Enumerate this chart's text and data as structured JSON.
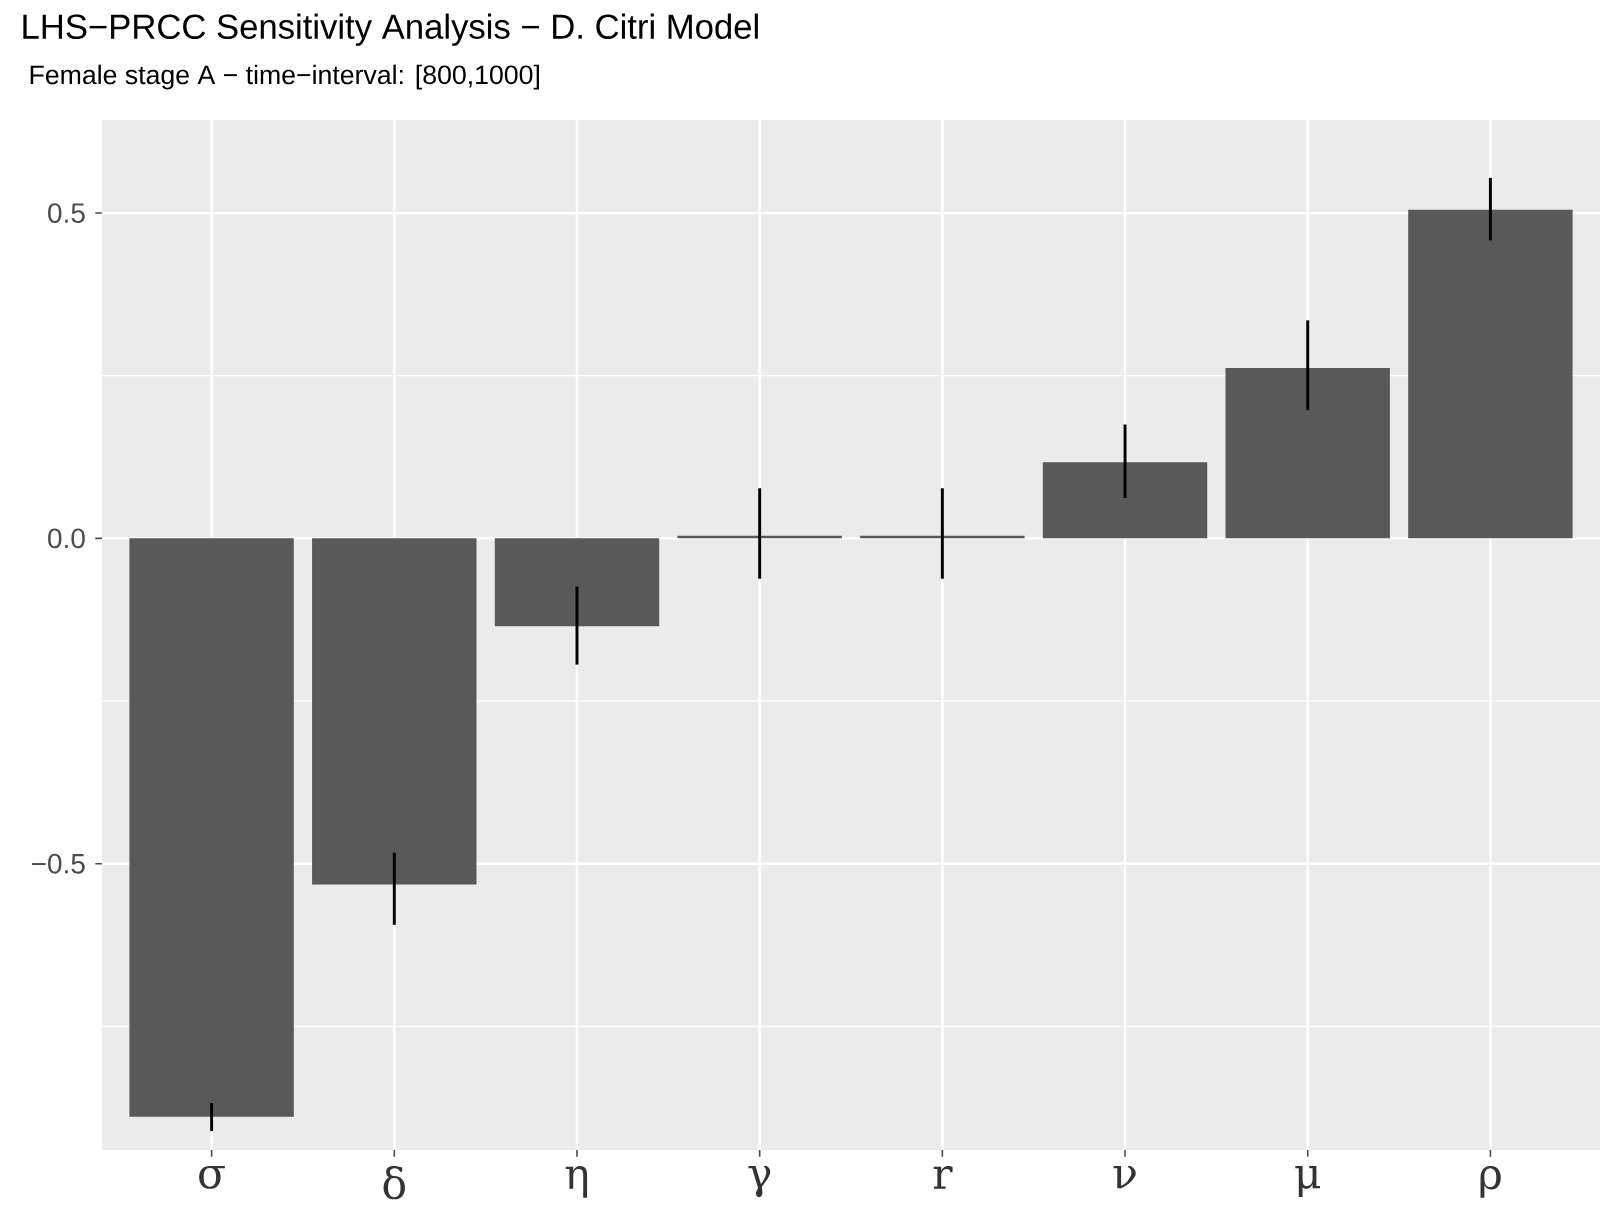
{
  "chart_data": {
    "type": "bar",
    "title": "LHS−PRCC Sensitivity Analysis − D. Citri Model",
    "subtitle": "Female stage A − time−interval: [800,1000]",
    "categories": [
      "σ",
      "δ",
      "η",
      "γ",
      "r",
      "ν",
      "μ",
      "ρ"
    ],
    "values": [
      -0.889,
      -0.532,
      -0.135,
      0.004,
      0.004,
      0.117,
      0.262,
      0.505
    ],
    "errors": [
      [
        -0.911,
        -0.868
      ],
      [
        -0.594,
        -0.483
      ],
      [
        -0.194,
        -0.074
      ],
      [
        -0.062,
        0.077
      ],
      [
        -0.062,
        0.077
      ],
      [
        0.062,
        0.175
      ],
      [
        0.197,
        0.335
      ],
      [
        0.458,
        0.554
      ]
    ],
    "color": "#595959",
    "ylim": [
      -0.94,
      0.643
    ],
    "yticks": [
      {
        "value": -0.75,
        "label": null
      },
      {
        "value": -0.5,
        "label": "−0.5"
      },
      {
        "value": -0.25,
        "label": null
      },
      {
        "value": 0,
        "label": "0.0"
      },
      {
        "value": 0.25,
        "label": null
      },
      {
        "value": 0.5,
        "label": "0.5"
      }
    ],
    "grid": true
  }
}
